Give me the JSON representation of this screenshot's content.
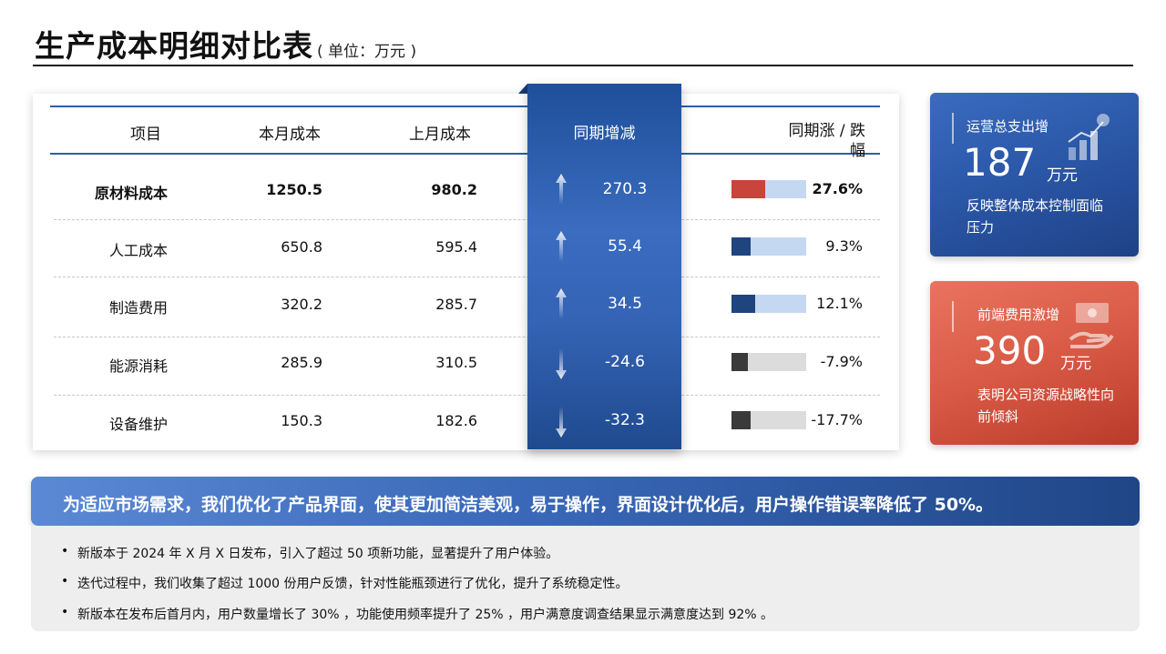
{
  "title": "生产成本明细对比表",
  "unit_note": "( 单位：万元 )",
  "table": {
    "headers": {
      "item": "项目",
      "current": "本月成本",
      "previous": "上月成本",
      "change": "同期增减",
      "rate": "同期涨 / 跌\n幅"
    },
    "rows": [
      {
        "item": "原材料成本",
        "current": "1250.5",
        "previous": "980.2",
        "change": "270.3",
        "rate": "27.6%",
        "direction": "up",
        "bar_fraction": 0.45,
        "bar_color": "#c9443a",
        "bold": true
      },
      {
        "item": "人工成本",
        "current": "650.8",
        "previous": "595.4",
        "change": "55.4",
        "rate": "9.3%",
        "direction": "up",
        "bar_fraction": 0.26,
        "bar_color": "#1f447e"
      },
      {
        "item": "制造费用",
        "current": "320.2",
        "previous": "285.7",
        "change": "34.5",
        "rate": "12.1%",
        "direction": "up",
        "bar_fraction": 0.32,
        "bar_color": "#1f447e"
      },
      {
        "item": "能源消耗",
        "current": "285.9",
        "previous": "310.5",
        "change": "-24.6",
        "rate": "-7.9%",
        "direction": "down",
        "bar_fraction": 0.22,
        "bar_color": "#3a3a3a"
      },
      {
        "item": "设备维护",
        "current": "150.3",
        "previous": "182.6",
        "change": "-32.3",
        "rate": "-17.7%",
        "direction": "down",
        "bar_fraction": 0.25,
        "bar_color": "#3a3a3a"
      }
    ]
  },
  "cards": {
    "blue": {
      "label": "运营总支出增",
      "value": "187",
      "unit": "万元",
      "desc": "反映整体成本控制面临压力",
      "icon": "growth-chart-icon"
    },
    "red": {
      "label": "前端费用激增",
      "value": "390",
      "unit": "万元",
      "desc": "表明公司资源战略性向前倾斜",
      "icon": "money-hand-icon"
    }
  },
  "banner": "为适应市场需求，我们优化了产品界面，使其更加简洁美观，易于操作，界面设计优化后，用户操作错误率降低了 50%。",
  "bullets": [
    "新版本于 2024 年 X 月 X 日发布，引入了超过 50 项新功能，显著提升了用户体验。",
    "迭代过程中，我们收集了超过 1000 份用户反馈，针对性能瓶颈进行了优化，提升了系统稳定性。",
    "新版本在发布后首月内，用户数量增长了 30% ，功能使用频率提升了 25% ，用户满意度调查结果显示满意度达到 92% 。"
  ],
  "colors": {
    "accent_blue": "#2c5ea8",
    "accent_red": "#d85a45",
    "bar_track_up": "#c5d8f2",
    "bar_track_down": "#dcdcdc"
  }
}
